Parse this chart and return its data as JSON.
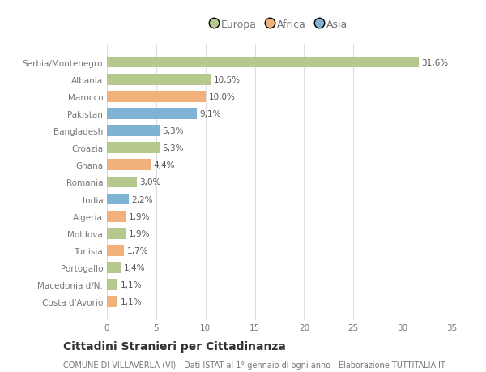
{
  "categories": [
    "Costa d'Avorio",
    "Macedonia d/N.",
    "Portogallo",
    "Tunisia",
    "Moldova",
    "Algeria",
    "India",
    "Romania",
    "Ghana",
    "Croazia",
    "Bangladesh",
    "Pakistan",
    "Marocco",
    "Albania",
    "Serbia/Montenegro"
  ],
  "values": [
    1.1,
    1.1,
    1.4,
    1.7,
    1.9,
    1.9,
    2.2,
    3.0,
    4.4,
    5.3,
    5.3,
    9.1,
    10.0,
    10.5,
    31.6
  ],
  "labels": [
    "1,1%",
    "1,1%",
    "1,4%",
    "1,7%",
    "1,9%",
    "1,9%",
    "2,2%",
    "3,0%",
    "4,4%",
    "5,3%",
    "5,3%",
    "9,1%",
    "10,0%",
    "10,5%",
    "31,6%"
  ],
  "continents": [
    "Africa",
    "Europa",
    "Europa",
    "Africa",
    "Europa",
    "Africa",
    "Asia",
    "Europa",
    "Africa",
    "Europa",
    "Asia",
    "Asia",
    "Africa",
    "Europa",
    "Europa"
  ],
  "colors": {
    "Europa": "#b5c98e",
    "Africa": "#f0b27a",
    "Asia": "#7fb3d3"
  },
  "legend_items": [
    "Europa",
    "Africa",
    "Asia"
  ],
  "legend_colors": [
    "#b5c98e",
    "#f0b27a",
    "#7fb3d3"
  ],
  "title": "Cittadini Stranieri per Cittadinanza",
  "subtitle": "COMUNE DI VILLAVERLA (VI) - Dati ISTAT al 1° gennaio di ogni anno - Elaborazione TUTTITALIA.IT",
  "xlim": [
    0,
    35
  ],
  "xticks": [
    0,
    5,
    10,
    15,
    20,
    25,
    30,
    35
  ],
  "background_color": "#ffffff",
  "bar_height": 0.65,
  "grid_color": "#dddddd",
  "label_fontsize": 7.5,
  "tick_fontsize": 7.5,
  "title_fontsize": 10,
  "subtitle_fontsize": 7
}
